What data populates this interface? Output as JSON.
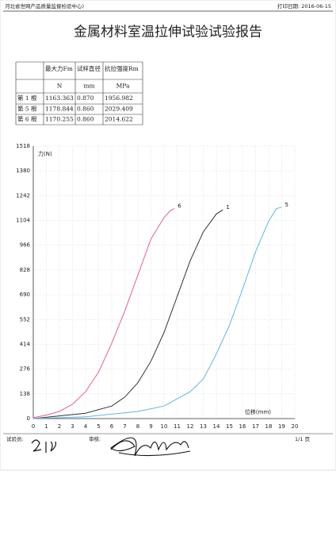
{
  "header": {
    "org": "河北省世网产品质量监督检验中心)",
    "print_date": "打印日期: 2016-06-15",
    "title": "金属材料室温拉伸试验试验报告"
  },
  "table": {
    "columns": [
      "最大力Fm",
      "试样直径",
      "抗拉强度Rm"
    ],
    "units": [
      "N",
      "mm",
      "MPa"
    ],
    "rows": [
      [
        "第 1 根",
        "1163.363",
        "0.870",
        "1956.982"
      ],
      [
        "第 5 根",
        "1178.844",
        "0.860",
        "2029.409"
      ],
      [
        "第 6 根",
        "1170.255",
        "0.860",
        "2014.622"
      ]
    ]
  },
  "chart": {
    "type": "line",
    "y_label": "力(N)",
    "x_label": "位移(mm)",
    "xlim": [
      0,
      20
    ],
    "xticks": [
      0,
      1,
      2,
      3,
      4,
      5,
      6,
      7,
      8,
      9,
      10,
      11,
      12,
      13,
      14,
      15,
      16,
      17,
      18,
      19,
      20
    ],
    "ylim": [
      0,
      1518
    ],
    "yticks": [
      0,
      138,
      276,
      414,
      552,
      690,
      828,
      966,
      1104,
      1242,
      1380,
      1518
    ],
    "grid": true,
    "series": [
      {
        "name": "6",
        "color": "#e0609a",
        "x": [
          0,
          1,
          2,
          3,
          4,
          5,
          6,
          7,
          8,
          9,
          10,
          10.5,
          10.8
        ],
        "values": [
          5,
          20,
          40,
          80,
          150,
          260,
          420,
          600,
          800,
          1000,
          1120,
          1160,
          1170
        ]
      },
      {
        "name": "1",
        "color": "#333333",
        "x": [
          0,
          2,
          4,
          6,
          7,
          8,
          9,
          10,
          11,
          12,
          13,
          14,
          14.5
        ],
        "values": [
          0,
          15,
          30,
          70,
          120,
          200,
          320,
          480,
          680,
          880,
          1040,
          1140,
          1163
        ]
      },
      {
        "name": "5",
        "color": "#5fb8e0",
        "x": [
          0,
          4,
          6,
          8,
          9,
          10,
          11,
          12,
          13,
          14,
          15,
          16,
          17,
          18,
          18.6,
          19
        ],
        "values": [
          0,
          10,
          25,
          40,
          55,
          70,
          110,
          150,
          220,
          360,
          520,
          720,
          930,
          1100,
          1170,
          1178
        ]
      }
    ]
  },
  "footer": {
    "tester": "试验员:",
    "reviewer": "审核:",
    "page": "1/1 页"
  }
}
